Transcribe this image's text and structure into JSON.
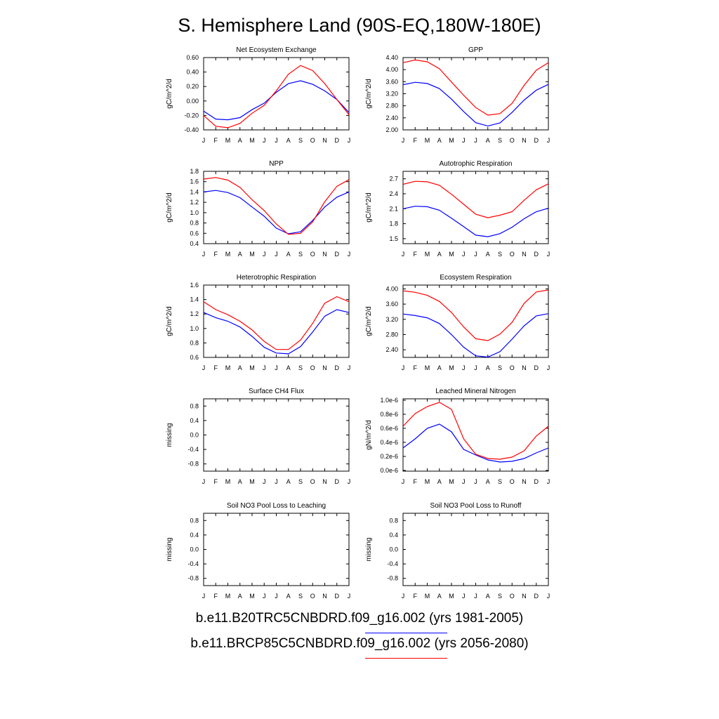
{
  "title": "S. Hemisphere Land (90S-EQ,180W-180E)",
  "legend": {
    "entries": [
      {
        "label": "b.e11.B20TRC5CNBDRD.f09_g16.002 (yrs 1981-2005)",
        "color": "#0000ff"
      },
      {
        "label": "b.e11.BRCP85C5CNBDRD.f09_g16.002 (yrs 2056-2080)",
        "color": "#ff0000"
      }
    ]
  },
  "chart_data": [
    {
      "type": "line",
      "title": "Net Ecosystem Exchange",
      "ylabel": "gC/m^2/d",
      "categories": [
        "J",
        "F",
        "M",
        "A",
        "M",
        "J",
        "J",
        "A",
        "S",
        "O",
        "N",
        "D",
        "J"
      ],
      "ylim": [
        -0.4,
        0.6
      ],
      "yticks": [
        "-0.40",
        "-0.20",
        "0.00",
        "0.20",
        "0.40",
        "0.60"
      ],
      "ytick_values": [
        -0.4,
        -0.2,
        0.0,
        0.2,
        0.4,
        0.6
      ],
      "series": [
        {
          "name": "b.e11.B20TRC5CNBDRD.f09_g16.002 (yrs 1981-2005)",
          "color": "#0000ff",
          "values": [
            -0.14,
            -0.25,
            -0.26,
            -0.23,
            -0.12,
            -0.03,
            0.12,
            0.24,
            0.28,
            0.23,
            0.14,
            0.02,
            -0.16
          ]
        },
        {
          "name": "b.e11.BRCP85C5CNBDRD.f09_g16.002 (yrs 2056-2080)",
          "color": "#ff0000",
          "values": [
            -0.2,
            -0.35,
            -0.37,
            -0.31,
            -0.17,
            -0.06,
            0.14,
            0.37,
            0.49,
            0.42,
            0.24,
            0.02,
            -0.19
          ]
        }
      ]
    },
    {
      "type": "line",
      "title": "GPP",
      "ylabel": "gC/m^2/d",
      "categories": [
        "J",
        "F",
        "M",
        "A",
        "M",
        "J",
        "J",
        "A",
        "S",
        "O",
        "N",
        "D",
        "J"
      ],
      "ylim": [
        2.0,
        4.4
      ],
      "yticks": [
        "2.00",
        "2.40",
        "2.80",
        "3.20",
        "3.60",
        "4.00",
        "4.40"
      ],
      "ytick_values": [
        2.0,
        2.4,
        2.8,
        3.2,
        3.6,
        4.0,
        4.4
      ],
      "series": [
        {
          "name": "b.e11.B20TRC5CNBDRD.f09_g16.002 (yrs 1981-2005)",
          "color": "#0000ff",
          "values": [
            3.5,
            3.58,
            3.54,
            3.37,
            3.02,
            2.61,
            2.24,
            2.13,
            2.23,
            2.58,
            2.99,
            3.32,
            3.51
          ]
        },
        {
          "name": "b.e11.BRCP85C5CNBDRD.f09_g16.002 (yrs 2056-2080)",
          "color": "#ff0000",
          "values": [
            4.23,
            4.32,
            4.26,
            4.03,
            3.59,
            3.15,
            2.74,
            2.49,
            2.54,
            2.88,
            3.48,
            3.98,
            4.23
          ]
        }
      ]
    },
    {
      "type": "line",
      "title": "NPP",
      "ylabel": "gC/m^2/d",
      "categories": [
        "J",
        "F",
        "M",
        "A",
        "M",
        "J",
        "J",
        "A",
        "S",
        "O",
        "N",
        "D",
        "J"
      ],
      "ylim": [
        0.4,
        1.8
      ],
      "yticks": [
        "0.4",
        "0.6",
        "0.8",
        "1.0",
        "1.2",
        "1.4",
        "1.6",
        "1.8"
      ],
      "ytick_values": [
        0.4,
        0.6,
        0.8,
        1.0,
        1.2,
        1.4,
        1.6,
        1.8
      ],
      "series": [
        {
          "name": "b.e11.B20TRC5CNBDRD.f09_g16.002 (yrs 1981-2005)",
          "color": "#0000ff",
          "values": [
            1.4,
            1.43,
            1.39,
            1.29,
            1.11,
            0.93,
            0.7,
            0.59,
            0.63,
            0.85,
            1.11,
            1.3,
            1.4
          ]
        },
        {
          "name": "b.e11.BRCP85C5CNBDRD.f09_g16.002 (yrs 2056-2080)",
          "color": "#ff0000",
          "values": [
            1.65,
            1.68,
            1.63,
            1.49,
            1.25,
            1.04,
            0.78,
            0.58,
            0.6,
            0.82,
            1.21,
            1.51,
            1.64
          ]
        }
      ]
    },
    {
      "type": "line",
      "title": "Autotrophic Respiration",
      "ylabel": "gC/m^2/d",
      "categories": [
        "J",
        "F",
        "M",
        "A",
        "M",
        "J",
        "J",
        "A",
        "S",
        "O",
        "N",
        "D",
        "J"
      ],
      "ylim": [
        1.4,
        2.85
      ],
      "yticks": [
        "1.5",
        "1.8",
        "2.1",
        "2.4",
        "2.7"
      ],
      "ytick_values": [
        1.5,
        1.8,
        2.1,
        2.4,
        2.7
      ],
      "series": [
        {
          "name": "b.e11.B20TRC5CNBDRD.f09_g16.002 (yrs 1981-2005)",
          "color": "#0000ff",
          "values": [
            2.1,
            2.15,
            2.14,
            2.07,
            1.91,
            1.74,
            1.57,
            1.54,
            1.6,
            1.73,
            1.9,
            2.04,
            2.11
          ]
        },
        {
          "name": "b.e11.BRCP85C5CNBDRD.f09_g16.002 (yrs 2056-2080)",
          "color": "#ff0000",
          "values": [
            2.59,
            2.65,
            2.64,
            2.57,
            2.39,
            2.19,
            1.99,
            1.92,
            1.97,
            2.04,
            2.27,
            2.48,
            2.6
          ]
        }
      ]
    },
    {
      "type": "line",
      "title": "Heterotrophic Respiration",
      "ylabel": "gC/m^2/d",
      "categories": [
        "J",
        "F",
        "M",
        "A",
        "M",
        "J",
        "J",
        "A",
        "S",
        "O",
        "N",
        "D",
        "J"
      ],
      "ylim": [
        0.6,
        1.6
      ],
      "yticks": [
        "0.6",
        "0.8",
        "1.0",
        "1.2",
        "1.4",
        "1.6"
      ],
      "ytick_values": [
        0.6,
        0.8,
        1.0,
        1.2,
        1.4,
        1.6
      ],
      "series": [
        {
          "name": "b.e11.B20TRC5CNBDRD.f09_g16.002 (yrs 1981-2005)",
          "color": "#0000ff",
          "values": [
            1.22,
            1.15,
            1.1,
            1.02,
            0.89,
            0.74,
            0.66,
            0.65,
            0.75,
            0.95,
            1.17,
            1.26,
            1.22
          ]
        },
        {
          "name": "b.e11.BRCP85C5CNBDRD.f09_g16.002 (yrs 2056-2080)",
          "color": "#ff0000",
          "values": [
            1.37,
            1.26,
            1.19,
            1.1,
            0.98,
            0.82,
            0.71,
            0.71,
            0.84,
            1.07,
            1.35,
            1.44,
            1.37
          ]
        }
      ]
    },
    {
      "type": "line",
      "title": "Ecosystem Respiration",
      "ylabel": "gC/m^2/d",
      "categories": [
        "J",
        "F",
        "M",
        "A",
        "M",
        "J",
        "J",
        "A",
        "S",
        "O",
        "N",
        "D",
        "J"
      ],
      "ylim": [
        2.2,
        4.1
      ],
      "yticks": [
        "2.40",
        "2.80",
        "3.20",
        "3.60",
        "4.00"
      ],
      "ytick_values": [
        2.4,
        2.8,
        3.2,
        3.6,
        4.0
      ],
      "series": [
        {
          "name": "b.e11.B20TRC5CNBDRD.f09_g16.002 (yrs 1981-2005)",
          "color": "#0000ff",
          "values": [
            3.34,
            3.3,
            3.24,
            3.09,
            2.8,
            2.47,
            2.24,
            2.21,
            2.35,
            2.68,
            3.03,
            3.29,
            3.35
          ]
        },
        {
          "name": "b.e11.BRCP85C5CNBDRD.f09_g16.002 (yrs 2056-2080)",
          "color": "#ff0000",
          "values": [
            3.95,
            3.91,
            3.83,
            3.67,
            3.38,
            3.0,
            2.69,
            2.64,
            2.81,
            3.12,
            3.62,
            3.92,
            3.97
          ]
        }
      ]
    },
    {
      "type": "line",
      "title": "Surface CH4 Flux",
      "ylabel": "missing",
      "categories": [
        "J",
        "F",
        "M",
        "A",
        "M",
        "J",
        "J",
        "A",
        "S",
        "O",
        "N",
        "D",
        "J"
      ],
      "ylim": [
        -1.0,
        1.0
      ],
      "yticks": [
        "-0.8",
        "-0.4",
        "0.0",
        "0.4",
        "0.8"
      ],
      "ytick_values": [
        -0.8,
        -0.4,
        0.0,
        0.4,
        0.8
      ],
      "series": []
    },
    {
      "type": "line",
      "title": "Leached Mineral Nitrogen",
      "ylabel": "gN/m^2/d",
      "categories": [
        "J",
        "F",
        "M",
        "A",
        "M",
        "J",
        "J",
        "A",
        "S",
        "O",
        "N",
        "D",
        "J"
      ],
      "ylim": [
        -0.01,
        1.02
      ],
      "yticks": [
        "0.0e-6",
        "0.2e-6",
        "0.4e-6",
        "0.6e-6",
        "0.8e-6",
        "1.0e-6"
      ],
      "ytick_values": [
        0.0,
        0.2,
        0.4,
        0.6,
        0.8,
        1.0
      ],
      "yunits": "e-6",
      "series": [
        {
          "name": "b.e11.B20TRC5CNBDRD.f09_g16.002 (yrs 1981-2005)",
          "color": "#0000ff",
          "values": [
            0.32,
            0.45,
            0.6,
            0.66,
            0.55,
            0.3,
            0.22,
            0.15,
            0.12,
            0.13,
            0.17,
            0.25,
            0.32
          ]
        },
        {
          "name": "b.e11.BRCP85C5CNBDRD.f09_g16.002 (yrs 2056-2080)",
          "color": "#ff0000",
          "values": [
            0.63,
            0.81,
            0.91,
            0.97,
            0.87,
            0.45,
            0.23,
            0.17,
            0.16,
            0.19,
            0.28,
            0.49,
            0.63
          ]
        }
      ]
    },
    {
      "type": "line",
      "title": "Soil NO3 Pool Loss to Leaching",
      "ylabel": "missing",
      "categories": [
        "J",
        "F",
        "M",
        "A",
        "M",
        "J",
        "J",
        "A",
        "S",
        "O",
        "N",
        "D",
        "J"
      ],
      "ylim": [
        -1.0,
        1.0
      ],
      "yticks": [
        "-0.8",
        "-0.4",
        "0.0",
        "0.4",
        "0.8"
      ],
      "ytick_values": [
        -0.8,
        -0.4,
        0.0,
        0.4,
        0.8
      ],
      "series": []
    },
    {
      "type": "line",
      "title": "Soil NO3 Pool Loss to Runoff",
      "ylabel": "missing",
      "categories": [
        "J",
        "F",
        "M",
        "A",
        "M",
        "J",
        "J",
        "A",
        "S",
        "O",
        "N",
        "D",
        "J"
      ],
      "ylim": [
        -1.0,
        1.0
      ],
      "yticks": [
        "-0.8",
        "-0.4",
        "0.0",
        "0.4",
        "0.8"
      ],
      "ytick_values": [
        -0.8,
        -0.4,
        0.0,
        0.4,
        0.8
      ],
      "series": []
    }
  ]
}
